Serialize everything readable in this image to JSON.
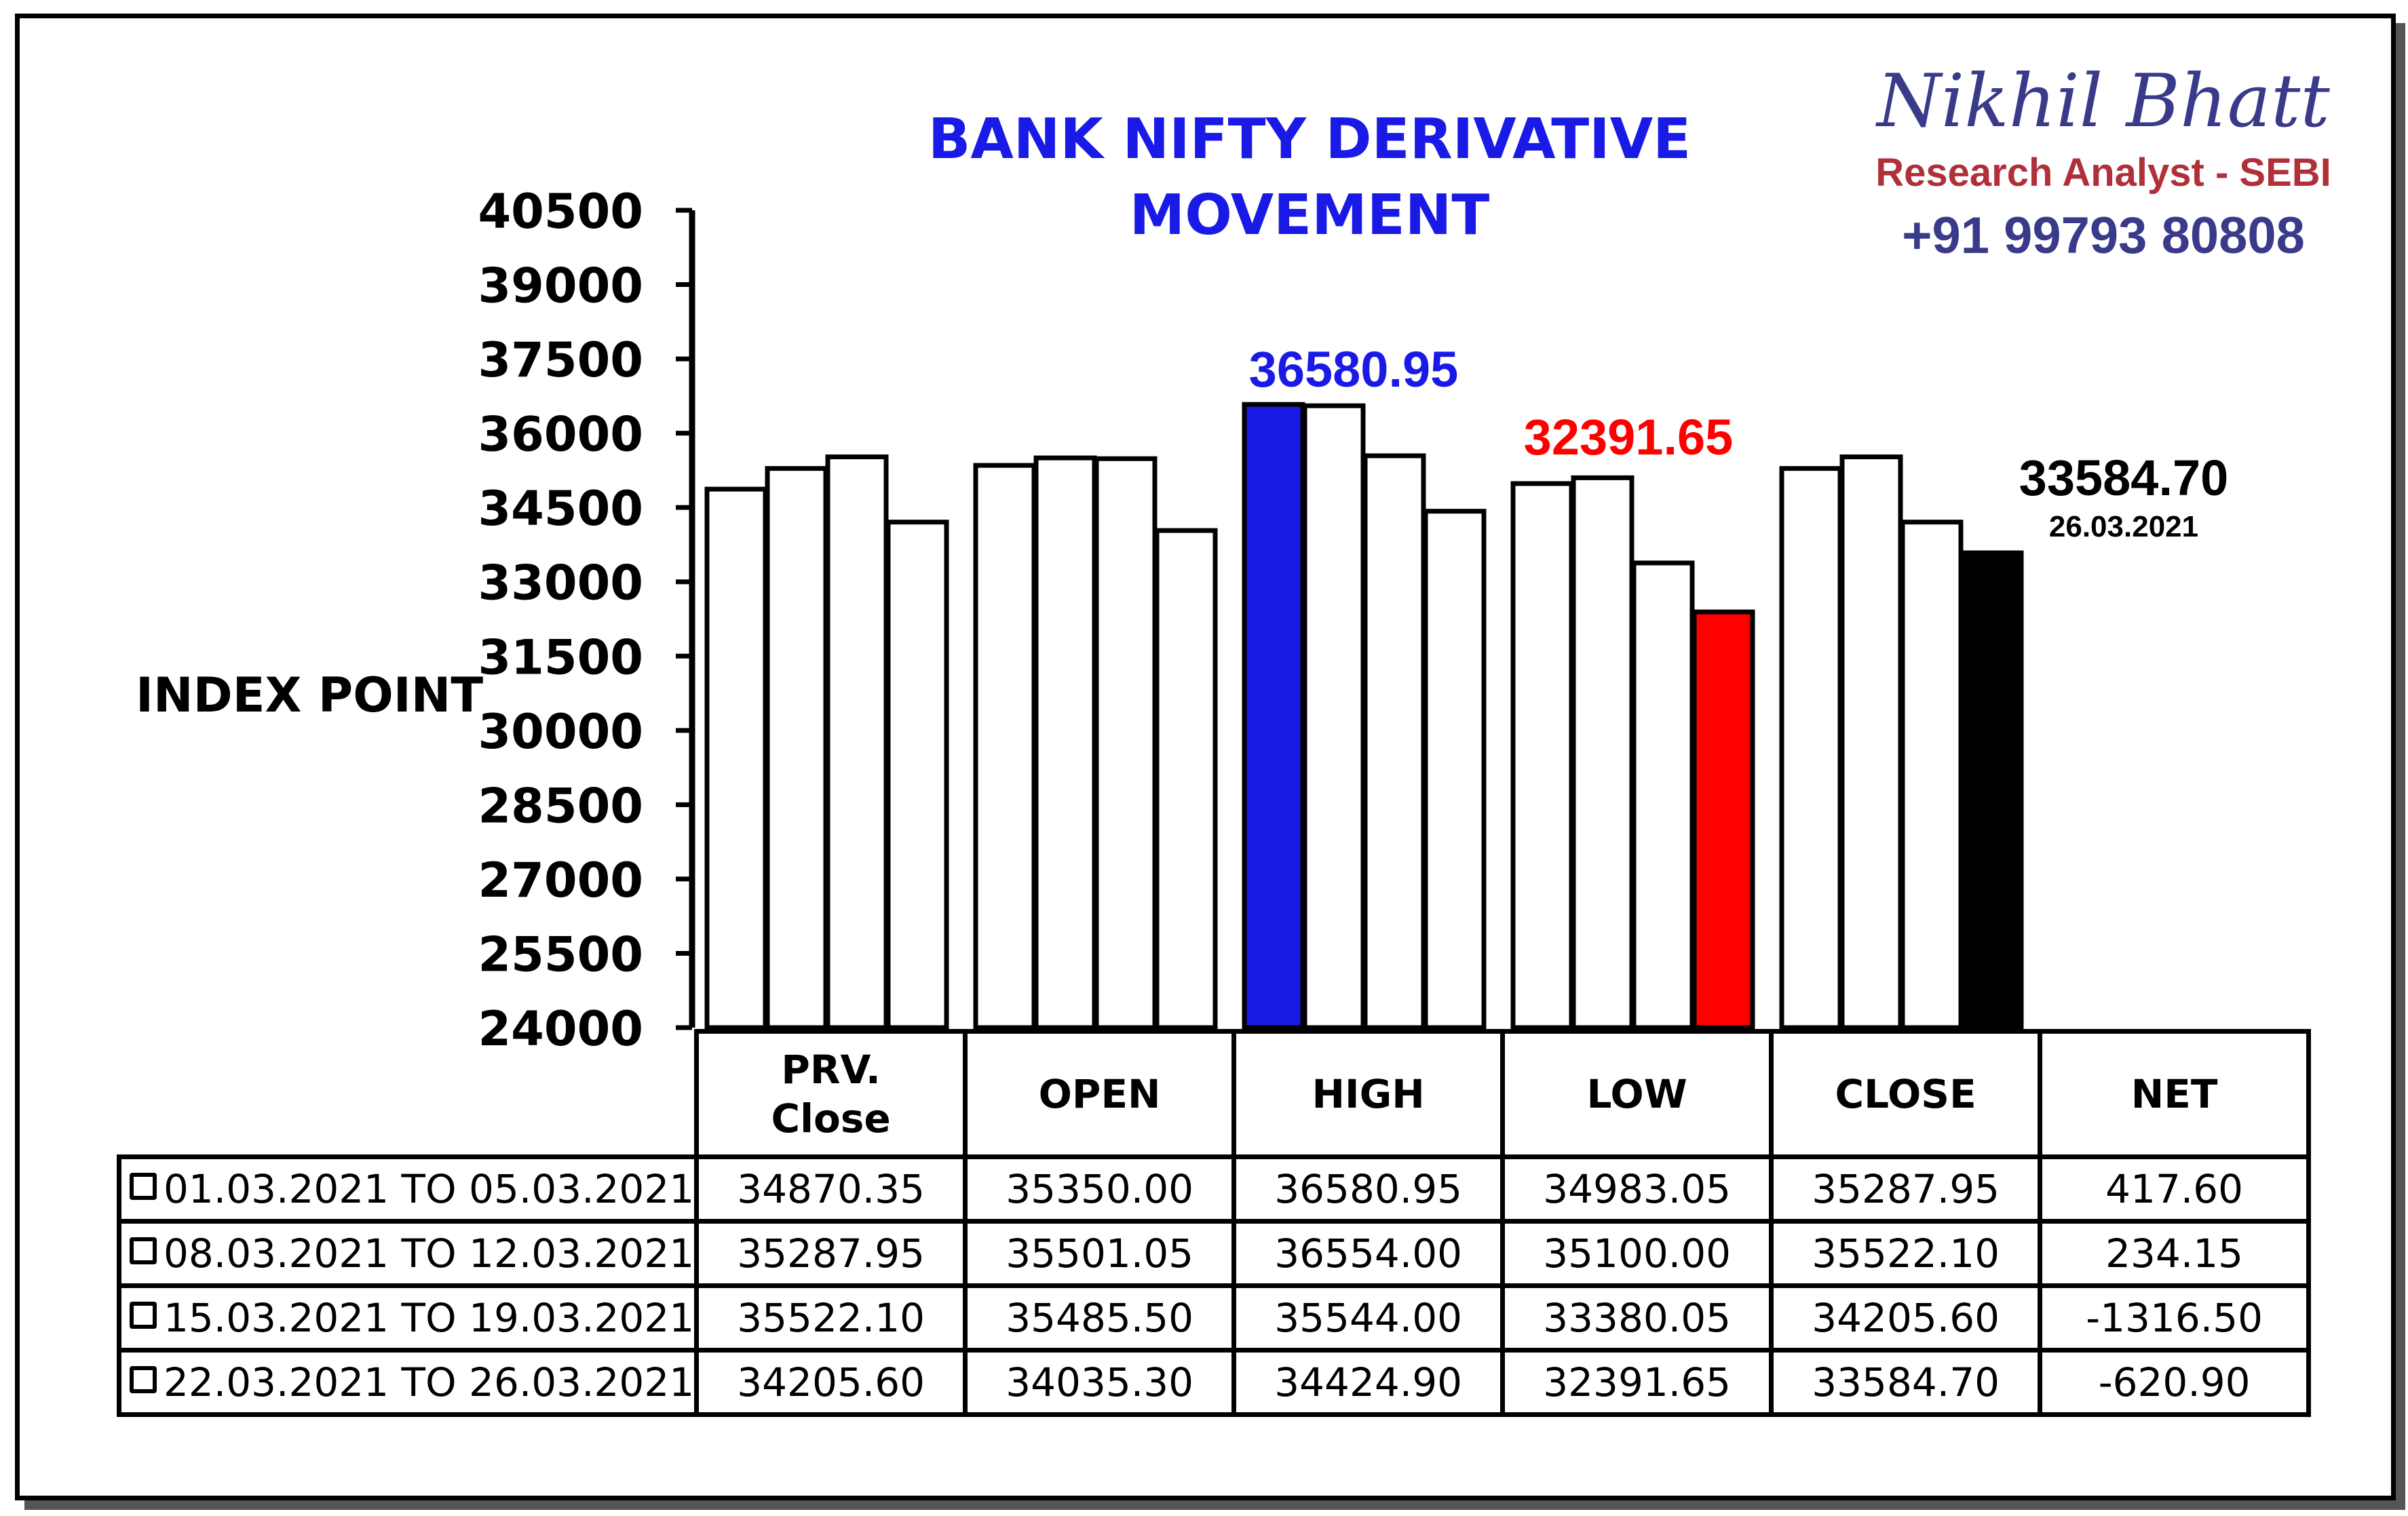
{
  "title": "BANK NIFTY DERIVATIVE MOVEMENT",
  "brand": {
    "name": "Nikhil Bhatt",
    "role": "Research Analyst - SEBI",
    "phone": "+91 99793 80808"
  },
  "colors": {
    "title": "#1a1ae6",
    "high_highlight": "#1a1ae6",
    "low_highlight": "#ff0000",
    "close_highlight": "#000000",
    "brand_name": "#3a3a8a",
    "brand_role": "#b0303a"
  },
  "chart_data": {
    "type": "bar",
    "ylabel": "INDEX POINT",
    "ylim": [
      24000,
      40500
    ],
    "yticks": [
      40500,
      39000,
      37500,
      36000,
      34500,
      33000,
      31500,
      30000,
      28500,
      27000,
      25500,
      24000
    ],
    "categories": [
      "PRV. Close",
      "OPEN",
      "HIGH",
      "LOW",
      "CLOSE"
    ],
    "series": [
      {
        "name": "01.03.2021 TO 05.03.2021",
        "values": [
          34870.35,
          35350.0,
          36580.95,
          34983.05,
          35287.95
        ]
      },
      {
        "name": "08.03.2021 TO 12.03.2021",
        "values": [
          35287.95,
          35501.05,
          36554.0,
          35100.0,
          35522.1
        ]
      },
      {
        "name": "15.03.2021 TO 19.03.2021",
        "values": [
          35522.1,
          35485.5,
          35544.0,
          33380.05,
          34205.6
        ]
      },
      {
        "name": "22.03.2021 TO 26.03.2021",
        "values": [
          34205.6,
          34035.3,
          34424.9,
          32391.65,
          33584.7
        ]
      }
    ],
    "highlights": [
      {
        "category": "HIGH",
        "series": 0,
        "color": "#1a1ae6",
        "label": "36580.95"
      },
      {
        "category": "LOW",
        "series": 3,
        "color": "#ff0000",
        "label": "32391.65"
      },
      {
        "category": "CLOSE",
        "series": 3,
        "color": "#000000",
        "label": "33584.70",
        "sublabel": "26.03.2021"
      }
    ]
  },
  "table": {
    "headers": [
      "PRV. Close",
      "OPEN",
      "HIGH",
      "LOW",
      "CLOSE",
      "NET"
    ],
    "rows": [
      {
        "label": "01.03.2021 TO 05.03.2021",
        "cells": [
          "34870.35",
          "35350.00",
          "36580.95",
          "34983.05",
          "35287.95",
          "417.60"
        ]
      },
      {
        "label": "08.03.2021 TO 12.03.2021",
        "cells": [
          "35287.95",
          "35501.05",
          "36554.00",
          "35100.00",
          "35522.10",
          "234.15"
        ]
      },
      {
        "label": "15.03.2021 TO 19.03.2021",
        "cells": [
          "35522.10",
          "35485.50",
          "35544.00",
          "33380.05",
          "34205.60",
          "-1316.50"
        ]
      },
      {
        "label": "22.03.2021 TO 26.03.2021",
        "cells": [
          "34205.60",
          "34035.30",
          "34424.90",
          "32391.65",
          "33584.70",
          "-620.90"
        ]
      }
    ]
  }
}
